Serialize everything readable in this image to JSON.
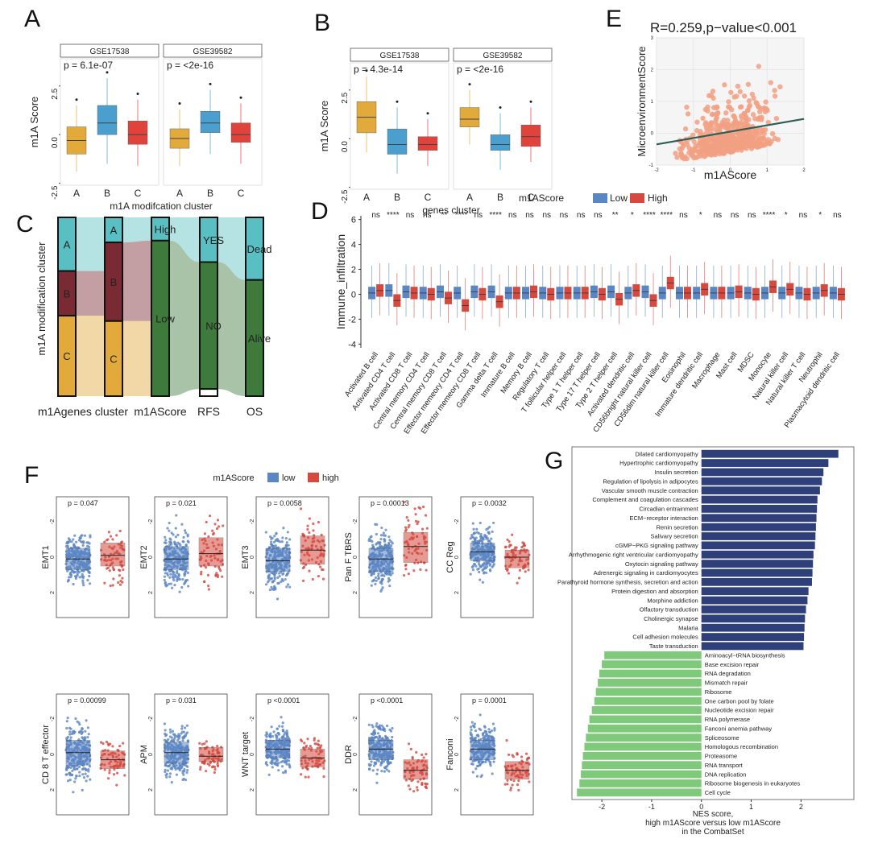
{
  "colors": {
    "gold": "#E2A93B",
    "blue": "#4A9FCF",
    "red": "#E0433B",
    "teal": "#5ABFC2",
    "maroon": "#7A2A33",
    "dgreen": "#3E7A3C",
    "low_blue": "#5B86C4",
    "high_red": "#D5493E",
    "navy": "#2F3F7A",
    "lgreen": "#7FC97A",
    "salmon": "#F2A083"
  },
  "chart_data": [
    {
      "panel": "A",
      "type": "box",
      "ylabel": "m1A Score",
      "xlabel": "m1A modifcation cluster",
      "yticks": [
        "-2.5",
        "0.0",
        "2.5"
      ],
      "ylim": [
        -2.6,
        3.9
      ],
      "facets": [
        {
          "name": "GSE17538",
          "p": "p = 6.1e-07",
          "categories": [
            "A",
            "B",
            "C"
          ],
          "boxes": [
            {
              "cat": "A",
              "q1": -1.0,
              "med": -0.3,
              "q3": 0.4,
              "lo": -1.9,
              "hi": 1.5
            },
            {
              "cat": "B",
              "q1": 0.0,
              "med": 0.6,
              "q3": 1.5,
              "lo": -1.5,
              "hi": 2.9
            },
            {
              "cat": "C",
              "q1": -0.5,
              "med": 0.0,
              "q3": 0.7,
              "lo": -1.6,
              "hi": 1.8
            }
          ]
        },
        {
          "name": "GSE39582",
          "p": "p = <2e-16",
          "categories": [
            "A",
            "B",
            "C"
          ],
          "boxes": [
            {
              "cat": "A",
              "q1": -0.7,
              "med": -0.2,
              "q3": 0.3,
              "lo": -1.6,
              "hi": 1.3
            },
            {
              "cat": "B",
              "q1": 0.1,
              "med": 0.6,
              "q3": 1.2,
              "lo": -1.0,
              "hi": 2.3
            },
            {
              "cat": "C",
              "q1": -0.4,
              "med": 0.0,
              "q3": 0.6,
              "lo": -1.5,
              "hi": 1.6
            }
          ]
        }
      ]
    },
    {
      "panel": "B",
      "type": "box",
      "ylabel": "m1A Score",
      "xlabel": "genes cluster",
      "yticks": [
        "-2.5",
        "0.0",
        "2.5"
      ],
      "ylim": [
        -2.6,
        3.9
      ],
      "facets": [
        {
          "name": "GSE17538",
          "p": "p = 4.3e-14",
          "categories": [
            "A",
            "B",
            "C"
          ],
          "boxes": [
            {
              "cat": "A",
              "q1": 0.3,
              "med": 1.1,
              "q3": 1.9,
              "lo": -0.7,
              "hi": 3.2
            },
            {
              "cat": "B",
              "q1": -0.8,
              "med": -0.3,
              "q3": 0.5,
              "lo": -1.8,
              "hi": 1.6
            },
            {
              "cat": "C",
              "q1": -0.6,
              "med": -0.3,
              "q3": 0.1,
              "lo": -1.4,
              "hi": 1.0
            }
          ]
        },
        {
          "name": "GSE39582",
          "p": "p = <2e-16",
          "categories": [
            "A",
            "B",
            "C"
          ],
          "boxes": [
            {
              "cat": "A",
              "q1": 0.6,
              "med": 1.0,
              "q3": 1.6,
              "lo": -0.3,
              "hi": 2.5
            },
            {
              "cat": "B",
              "q1": -0.6,
              "med": -0.3,
              "q3": 0.2,
              "lo": -1.6,
              "hi": 1.3
            },
            {
              "cat": "C",
              "q1": -0.4,
              "med": 0.1,
              "q3": 0.7,
              "lo": -1.2,
              "hi": 1.6
            }
          ]
        }
      ]
    },
    {
      "panel": "E",
      "type": "scatter",
      "title": "R=0.259,p−value<0.001",
      "xlabel": "m1AScore",
      "ylabel": "MicroenvironmentScore",
      "xlim": [
        -2,
        2
      ],
      "ylim": [
        -1,
        3
      ],
      "xticks": [
        "-2",
        "-1",
        "0",
        "1",
        "2"
      ],
      "yticks": [
        "-1",
        "0",
        "1",
        "2",
        "3"
      ],
      "regression": {
        "x": [
          -2,
          2
        ],
        "y": [
          -0.35,
          0.45
        ]
      }
    },
    {
      "panel": "C",
      "type": "alluvial",
      "ylabel": "m1A modification cluster",
      "axes": [
        {
          "name": "m1Agenes cluster",
          "strata": [
            {
              "label": "A",
              "frac": 0.3,
              "color": "teal"
            },
            {
              "label": "B",
              "frac": 0.25,
              "color": "maroon"
            },
            {
              "label": "C",
              "frac": 0.45,
              "color": "gold"
            }
          ]
        },
        {
          "name": "",
          "strata": [
            {
              "label": "A",
              "frac": 0.14,
              "color": "teal"
            },
            {
              "label": "B",
              "frac": 0.44,
              "color": "maroon"
            },
            {
              "label": "C",
              "frac": 0.42,
              "color": "gold"
            }
          ]
        },
        {
          "name": "m1AScore",
          "strata": [
            {
              "label": "High",
              "frac": 0.13,
              "color": "teal"
            },
            {
              "label": "Low",
              "frac": 0.87,
              "color": "dgreen"
            }
          ]
        },
        {
          "name": "RFS",
          "strata": [
            {
              "label": "YES",
              "frac": 0.25,
              "color": "teal"
            },
            {
              "label": "NO",
              "frac": 0.71,
              "color": "dgreen"
            },
            {
              "label": "",
              "frac": 0.04,
              "color": "white"
            }
          ]
        },
        {
          "name": "OS",
          "strata": [
            {
              "label": "Dead",
              "frac": 0.35,
              "color": "teal"
            },
            {
              "label": "Alive",
              "frac": 0.65,
              "color": "dgreen"
            }
          ]
        }
      ]
    },
    {
      "panel": "D",
      "type": "box",
      "legend_title": "m1AScore",
      "legend": [
        "Low",
        "High"
      ],
      "ylabel": "Immune_infiltration",
      "yticks": [
        "-4",
        "-2",
        "0",
        "2",
        "4",
        "6"
      ],
      "ylim": [
        -4.3,
        6.3
      ],
      "categories": [
        "Activated B cell",
        "Activated CD4 T cell",
        "Activated CD8 T cell",
        "Central memory CD4 T cell",
        "Central memory CD8 T cell",
        "Effector memeory CD4 T cell",
        "Effector memeory CD8 T cell",
        "Gamma delta T cell",
        "Immature  B cell",
        "Memory B cell",
        "Regulatory T cell",
        "T follicular helper cell",
        "Type 1 T helper cell",
        "Type 17 T helper cell",
        "Type 2 T helper cell",
        "Activated dendritic cell",
        "CD56bright natural killer cell",
        "CD56dim natural killer cell",
        "Eosinophil",
        "Immature dendritic cell",
        "Macrophage",
        "Mast cell",
        "MDSC",
        "Monocyte",
        "Natural killer cell",
        "Natural killer T cell",
        "Neutrophil",
        "Plasmacytoid dendritic cell"
      ],
      "significance": [
        "ns",
        "****",
        "ns",
        "ns",
        "**",
        "****",
        "ns",
        "****",
        "ns",
        "ns",
        "ns",
        "ns",
        "ns",
        "ns",
        "**",
        "*",
        "****",
        "****",
        "ns",
        "*",
        "ns",
        "ns",
        "ns",
        "****",
        "*",
        "ns",
        "*",
        "ns"
      ],
      "low_median": [
        0.1,
        0.3,
        0.2,
        0.1,
        0.2,
        0.1,
        0.2,
        0.2,
        0.1,
        0.1,
        0.1,
        0.1,
        0.1,
        0.2,
        0.2,
        0.1,
        0.2,
        0.1,
        0.1,
        0.1,
        0.1,
        0.1,
        0.1,
        0.1,
        0.1,
        0.1,
        0.1,
        0.1
      ],
      "high_median": [
        0.3,
        -0.5,
        0.1,
        0.0,
        -0.3,
        -0.9,
        0.0,
        -0.6,
        0.1,
        0.2,
        0.0,
        0.1,
        0.1,
        0.0,
        -0.4,
        0.3,
        -0.5,
        0.9,
        0.1,
        0.4,
        0.1,
        0.2,
        0.0,
        0.6,
        0.4,
        0.0,
        0.3,
        0.0
      ]
    },
    {
      "panel": "F",
      "type": "box+jitter",
      "legend_title": "m1AScore",
      "legend": [
        "low",
        "high"
      ],
      "panels": [
        {
          "ylabel": "EMT1",
          "p": "p = 0.047",
          "low": {
            "q1": -0.7,
            "med": -0.1,
            "q3": 0.5
          },
          "high": {
            "q1": -0.5,
            "med": 0.1,
            "q3": 0.8
          },
          "yticks": [
            "-2",
            "0",
            "2"
          ]
        },
        {
          "ylabel": "EMT2",
          "p": "p = 0.021",
          "low": {
            "q1": -0.7,
            "med": -0.1,
            "q3": 0.6
          },
          "high": {
            "q1": -0.5,
            "med": 0.2,
            "q3": 1.1
          },
          "yticks": [
            "-2",
            "0",
            "2"
          ]
        },
        {
          "ylabel": "EMT3",
          "p": "p = 0.0058",
          "low": {
            "q1": -0.8,
            "med": -0.2,
            "q3": 0.5
          },
          "high": {
            "q1": -0.4,
            "med": 0.4,
            "q3": 1.2
          },
          "yticks": [
            "-2",
            "0",
            "2"
          ]
        },
        {
          "ylabel": "Pan F TBRS",
          "p": "p = 0.00013",
          "low": {
            "q1": -0.8,
            "med": -0.1,
            "q3": 0.5
          },
          "high": {
            "q1": -0.3,
            "med": 0.6,
            "q3": 1.4
          },
          "yticks": [
            "-2",
            "0",
            "2"
          ]
        },
        {
          "ylabel": "CC Reg",
          "p": "p = 0.0032",
          "low": {
            "q1": -0.2,
            "med": 0.3,
            "q3": 0.8
          },
          "high": {
            "q1": -0.6,
            "med": 0.0,
            "q3": 0.4
          },
          "yticks": [
            "-2",
            "0",
            "2"
          ]
        },
        {
          "ylabel": "CD 8 T effector",
          "p": "p = 0.00099",
          "low": {
            "q1": -0.6,
            "med": 0.1,
            "q3": 0.8
          },
          "high": {
            "q1": -0.8,
            "med": -0.3,
            "q3": 0.2
          },
          "yticks": [
            "-2",
            "0",
            "2"
          ]
        },
        {
          "ylabel": "APM",
          "p": "p = 0.031",
          "low": {
            "q1": -0.5,
            "med": 0.1,
            "q3": 0.7
          },
          "high": {
            "q1": -0.4,
            "med": -0.1,
            "q3": 0.4
          },
          "yticks": [
            "-2",
            "0",
            "2"
          ]
        },
        {
          "ylabel": "WNT target",
          "p": "p <0.0001",
          "low": {
            "q1": -0.2,
            "med": 0.3,
            "q3": 0.8
          },
          "high": {
            "q1": -0.7,
            "med": -0.2,
            "q3": 0.3
          },
          "yticks": [
            "-2",
            "0",
            "2",
            "-4"
          ]
        },
        {
          "ylabel": "DDR",
          "p": "p <0.0001",
          "low": {
            "q1": -0.3,
            "med": 0.3,
            "q3": 0.8
          },
          "high": {
            "q1": -1.4,
            "med": -0.9,
            "q3": -0.3
          },
          "yticks": [
            "-2",
            "0",
            "2"
          ]
        },
        {
          "ylabel": "Fanconi",
          "p": "p = 0.0001",
          "low": {
            "q1": -0.3,
            "med": 0.3,
            "q3": 0.8
          },
          "high": {
            "q1": -1.4,
            "med": -0.9,
            "q3": -0.4
          },
          "yticks": [
            "-2",
            "0",
            "2"
          ]
        }
      ]
    },
    {
      "panel": "G",
      "type": "bar",
      "orientation": "horizontal",
      "xlabel": "NES score,\nhigh m1AScore versus low m1AScore\nin the CombatSet",
      "xticks": [
        "-2",
        "-1",
        "0",
        "1",
        "2"
      ],
      "xlim": [
        -2.6,
        2.9
      ],
      "categories": [
        "Dilated cardiomyopathy",
        "Hypertrophic cardiomyopathy",
        "Insulin secretion",
        "Regulation of lipolysis in adipocytes",
        "Vascular smooth muscle contraction",
        "Complement and coagulation cascades",
        "Circadian entrainment",
        "ECM−receptor interaction",
        "Renin secretion",
        "Salivary secretion",
        "cGMP−PKG signaling pathway",
        "Arrhythmogenic right ventricular cardiomyopathy",
        "Oxytocin signaling pathway",
        "Adrenergic signaling in cardiomyocytes",
        "Parathyroid hormone synthesis, secretion and action",
        "Protein digestion and absorption",
        "Morphine addiction",
        "Olfactory transduction",
        "Cholinergic synapse",
        "Malaria",
        "Cell adhesion molecules",
        "Taste transduction",
        "Aminoacyl−tRNA biosynthesis",
        "Base excision repair",
        "RNA degradation",
        "Mismatch repair",
        "Ribosome",
        "One carbon pool by folate",
        "Nucleotide excision repair",
        "RNA polymerase",
        "Fanconi anemia pathway",
        "Spliceosome",
        "Homologous recombination",
        "Proteasome",
        "RNA transport",
        "DNA replication",
        "Ribosome biogenesis in eukaryotes",
        "Cell cycle"
      ],
      "values": [
        2.75,
        2.55,
        2.45,
        2.42,
        2.38,
        2.33,
        2.32,
        2.31,
        2.3,
        2.29,
        2.28,
        2.25,
        2.24,
        2.23,
        2.22,
        2.15,
        2.13,
        2.1,
        2.08,
        2.07,
        2.06,
        2.05,
        -1.95,
        -2.0,
        -2.05,
        -2.08,
        -2.12,
        -2.15,
        -2.2,
        -2.25,
        -2.28,
        -2.32,
        -2.35,
        -2.38,
        -2.4,
        -2.42,
        -2.45,
        -2.5
      ]
    }
  ]
}
